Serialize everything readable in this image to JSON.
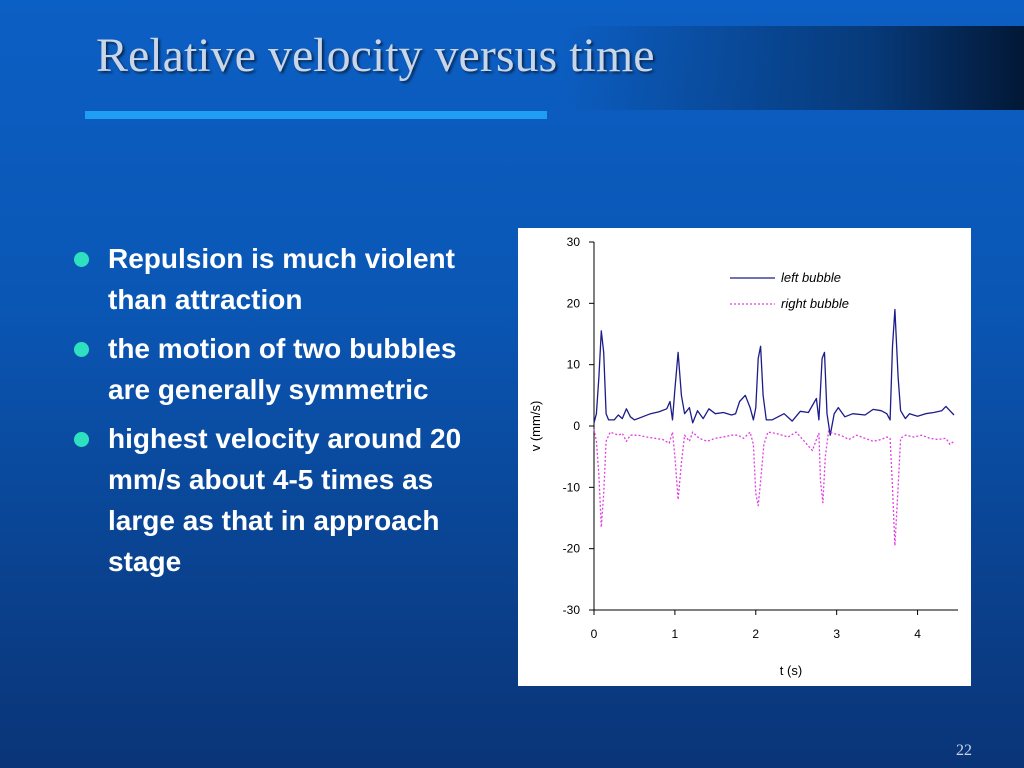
{
  "slide": {
    "title": "Relative velocity versus time",
    "page_number": "22",
    "bullets": [
      {
        "text": "Repulsion is much violent than attraction"
      },
      {
        "text": "the motion of two bubbles are generally symmetric"
      },
      {
        "text": "highest velocity around  20 mm/s about 4-5 times as large as that in approach stage"
      }
    ]
  },
  "chart_data": {
    "type": "line",
    "xlabel": "t (s)",
    "ylabel": "v (mm/s)",
    "xlim": [
      0,
      4.5
    ],
    "ylim": [
      -30,
      30
    ],
    "x_ticks": [
      "0",
      "1",
      "2",
      "3",
      "4"
    ],
    "y_ticks": [
      "30",
      "20",
      "10",
      "0",
      "-10",
      "-20",
      "-30"
    ],
    "grid": false,
    "legend_position": "top-right",
    "series": [
      {
        "name": "left bubble",
        "color": "#1c1c8a",
        "style": "solid",
        "points": [
          [
            0,
            0.5
          ],
          [
            0.03,
            2
          ],
          [
            0.06,
            8
          ],
          [
            0.09,
            15.5
          ],
          [
            0.12,
            12
          ],
          [
            0.15,
            2
          ],
          [
            0.18,
            1
          ],
          [
            0.25,
            1
          ],
          [
            0.3,
            1.8
          ],
          [
            0.35,
            1.2
          ],
          [
            0.4,
            2.8
          ],
          [
            0.45,
            1.5
          ],
          [
            0.5,
            1
          ],
          [
            0.6,
            1.5
          ],
          [
            0.7,
            2
          ],
          [
            0.8,
            2.3
          ],
          [
            0.9,
            2.8
          ],
          [
            0.94,
            4
          ],
          [
            0.97,
            1
          ],
          [
            1.0,
            6
          ],
          [
            1.04,
            12
          ],
          [
            1.08,
            5
          ],
          [
            1.12,
            2
          ],
          [
            1.18,
            3
          ],
          [
            1.22,
            0.5
          ],
          [
            1.28,
            2.5
          ],
          [
            1.35,
            1.2
          ],
          [
            1.42,
            2.8
          ],
          [
            1.5,
            2
          ],
          [
            1.6,
            2.2
          ],
          [
            1.7,
            1.8
          ],
          [
            1.75,
            2
          ],
          [
            1.8,
            4
          ],
          [
            1.87,
            5
          ],
          [
            1.93,
            3
          ],
          [
            1.97,
            1
          ],
          [
            2.0,
            3
          ],
          [
            2.03,
            11
          ],
          [
            2.06,
            13
          ],
          [
            2.09,
            5
          ],
          [
            2.13,
            1
          ],
          [
            2.2,
            1
          ],
          [
            2.35,
            2
          ],
          [
            2.45,
            0.8
          ],
          [
            2.55,
            2.4
          ],
          [
            2.65,
            2.2
          ],
          [
            2.75,
            4.5
          ],
          [
            2.78,
            1
          ],
          [
            2.82,
            11
          ],
          [
            2.85,
            12
          ],
          [
            2.88,
            2
          ],
          [
            2.92,
            -1.5
          ],
          [
            2.97,
            2
          ],
          [
            3.02,
            3
          ],
          [
            3.1,
            1.5
          ],
          [
            3.2,
            2
          ],
          [
            3.35,
            1.8
          ],
          [
            3.45,
            2.7
          ],
          [
            3.55,
            2.5
          ],
          [
            3.62,
            2
          ],
          [
            3.66,
            1
          ],
          [
            3.69,
            13
          ],
          [
            3.72,
            19
          ],
          [
            3.76,
            8
          ],
          [
            3.79,
            2.5
          ],
          [
            3.85,
            1.2
          ],
          [
            3.9,
            2
          ],
          [
            4.0,
            1.6
          ],
          [
            4.1,
            2
          ],
          [
            4.2,
            2.2
          ],
          [
            4.3,
            2.5
          ],
          [
            4.35,
            3.2
          ],
          [
            4.4,
            2.5
          ],
          [
            4.45,
            1.8
          ]
        ]
      },
      {
        "name": "right bubble",
        "color": "#e040e0",
        "style": "dotted",
        "points": [
          [
            0,
            -0.5
          ],
          [
            0.03,
            -2.5
          ],
          [
            0.06,
            -8
          ],
          [
            0.09,
            -16.5
          ],
          [
            0.12,
            -11
          ],
          [
            0.15,
            -2.5
          ],
          [
            0.2,
            -1
          ],
          [
            0.3,
            -1.5
          ],
          [
            0.35,
            -1.2
          ],
          [
            0.4,
            -2.5
          ],
          [
            0.45,
            -1.5
          ],
          [
            0.55,
            -1.5
          ],
          [
            0.65,
            -1.8
          ],
          [
            0.75,
            -2
          ],
          [
            0.85,
            -2.2
          ],
          [
            0.93,
            -2.8
          ],
          [
            0.97,
            -1
          ],
          [
            1.0,
            -5
          ],
          [
            1.04,
            -12
          ],
          [
            1.08,
            -6
          ],
          [
            1.12,
            -1.5
          ],
          [
            1.18,
            -2.5
          ],
          [
            1.22,
            -1
          ],
          [
            1.3,
            -2
          ],
          [
            1.4,
            -2.5
          ],
          [
            1.5,
            -2
          ],
          [
            1.6,
            -1.8
          ],
          [
            1.7,
            -1.5
          ],
          [
            1.78,
            -1.5
          ],
          [
            1.85,
            -2
          ],
          [
            1.93,
            -1
          ],
          [
            1.97,
            -3
          ],
          [
            2.0,
            -11
          ],
          [
            2.03,
            -13
          ],
          [
            2.06,
            -9
          ],
          [
            2.1,
            -3
          ],
          [
            2.15,
            -1
          ],
          [
            2.25,
            -1.2
          ],
          [
            2.4,
            -1.8
          ],
          [
            2.5,
            -1
          ],
          [
            2.6,
            -2.5
          ],
          [
            2.7,
            -4
          ],
          [
            2.75,
            -2.2
          ],
          [
            2.78,
            -1.2
          ],
          [
            2.8,
            -9
          ],
          [
            2.83,
            -12.5
          ],
          [
            2.86,
            -5
          ],
          [
            2.9,
            -0.8
          ],
          [
            2.95,
            -1.2
          ],
          [
            3.05,
            -1.5
          ],
          [
            3.15,
            -2.2
          ],
          [
            3.25,
            -1.5
          ],
          [
            3.35,
            -2
          ],
          [
            3.45,
            -2.5
          ],
          [
            3.55,
            -2.2
          ],
          [
            3.62,
            -1.8
          ],
          [
            3.66,
            -2
          ],
          [
            3.69,
            -10
          ],
          [
            3.72,
            -19.5
          ],
          [
            3.76,
            -10
          ],
          [
            3.79,
            -2
          ],
          [
            3.85,
            -1.5
          ],
          [
            3.95,
            -1.8
          ],
          [
            4.05,
            -1.5
          ],
          [
            4.15,
            -2
          ],
          [
            4.25,
            -2.2
          ],
          [
            4.35,
            -2
          ],
          [
            4.4,
            -3
          ],
          [
            4.45,
            -2.5
          ]
        ]
      }
    ]
  }
}
